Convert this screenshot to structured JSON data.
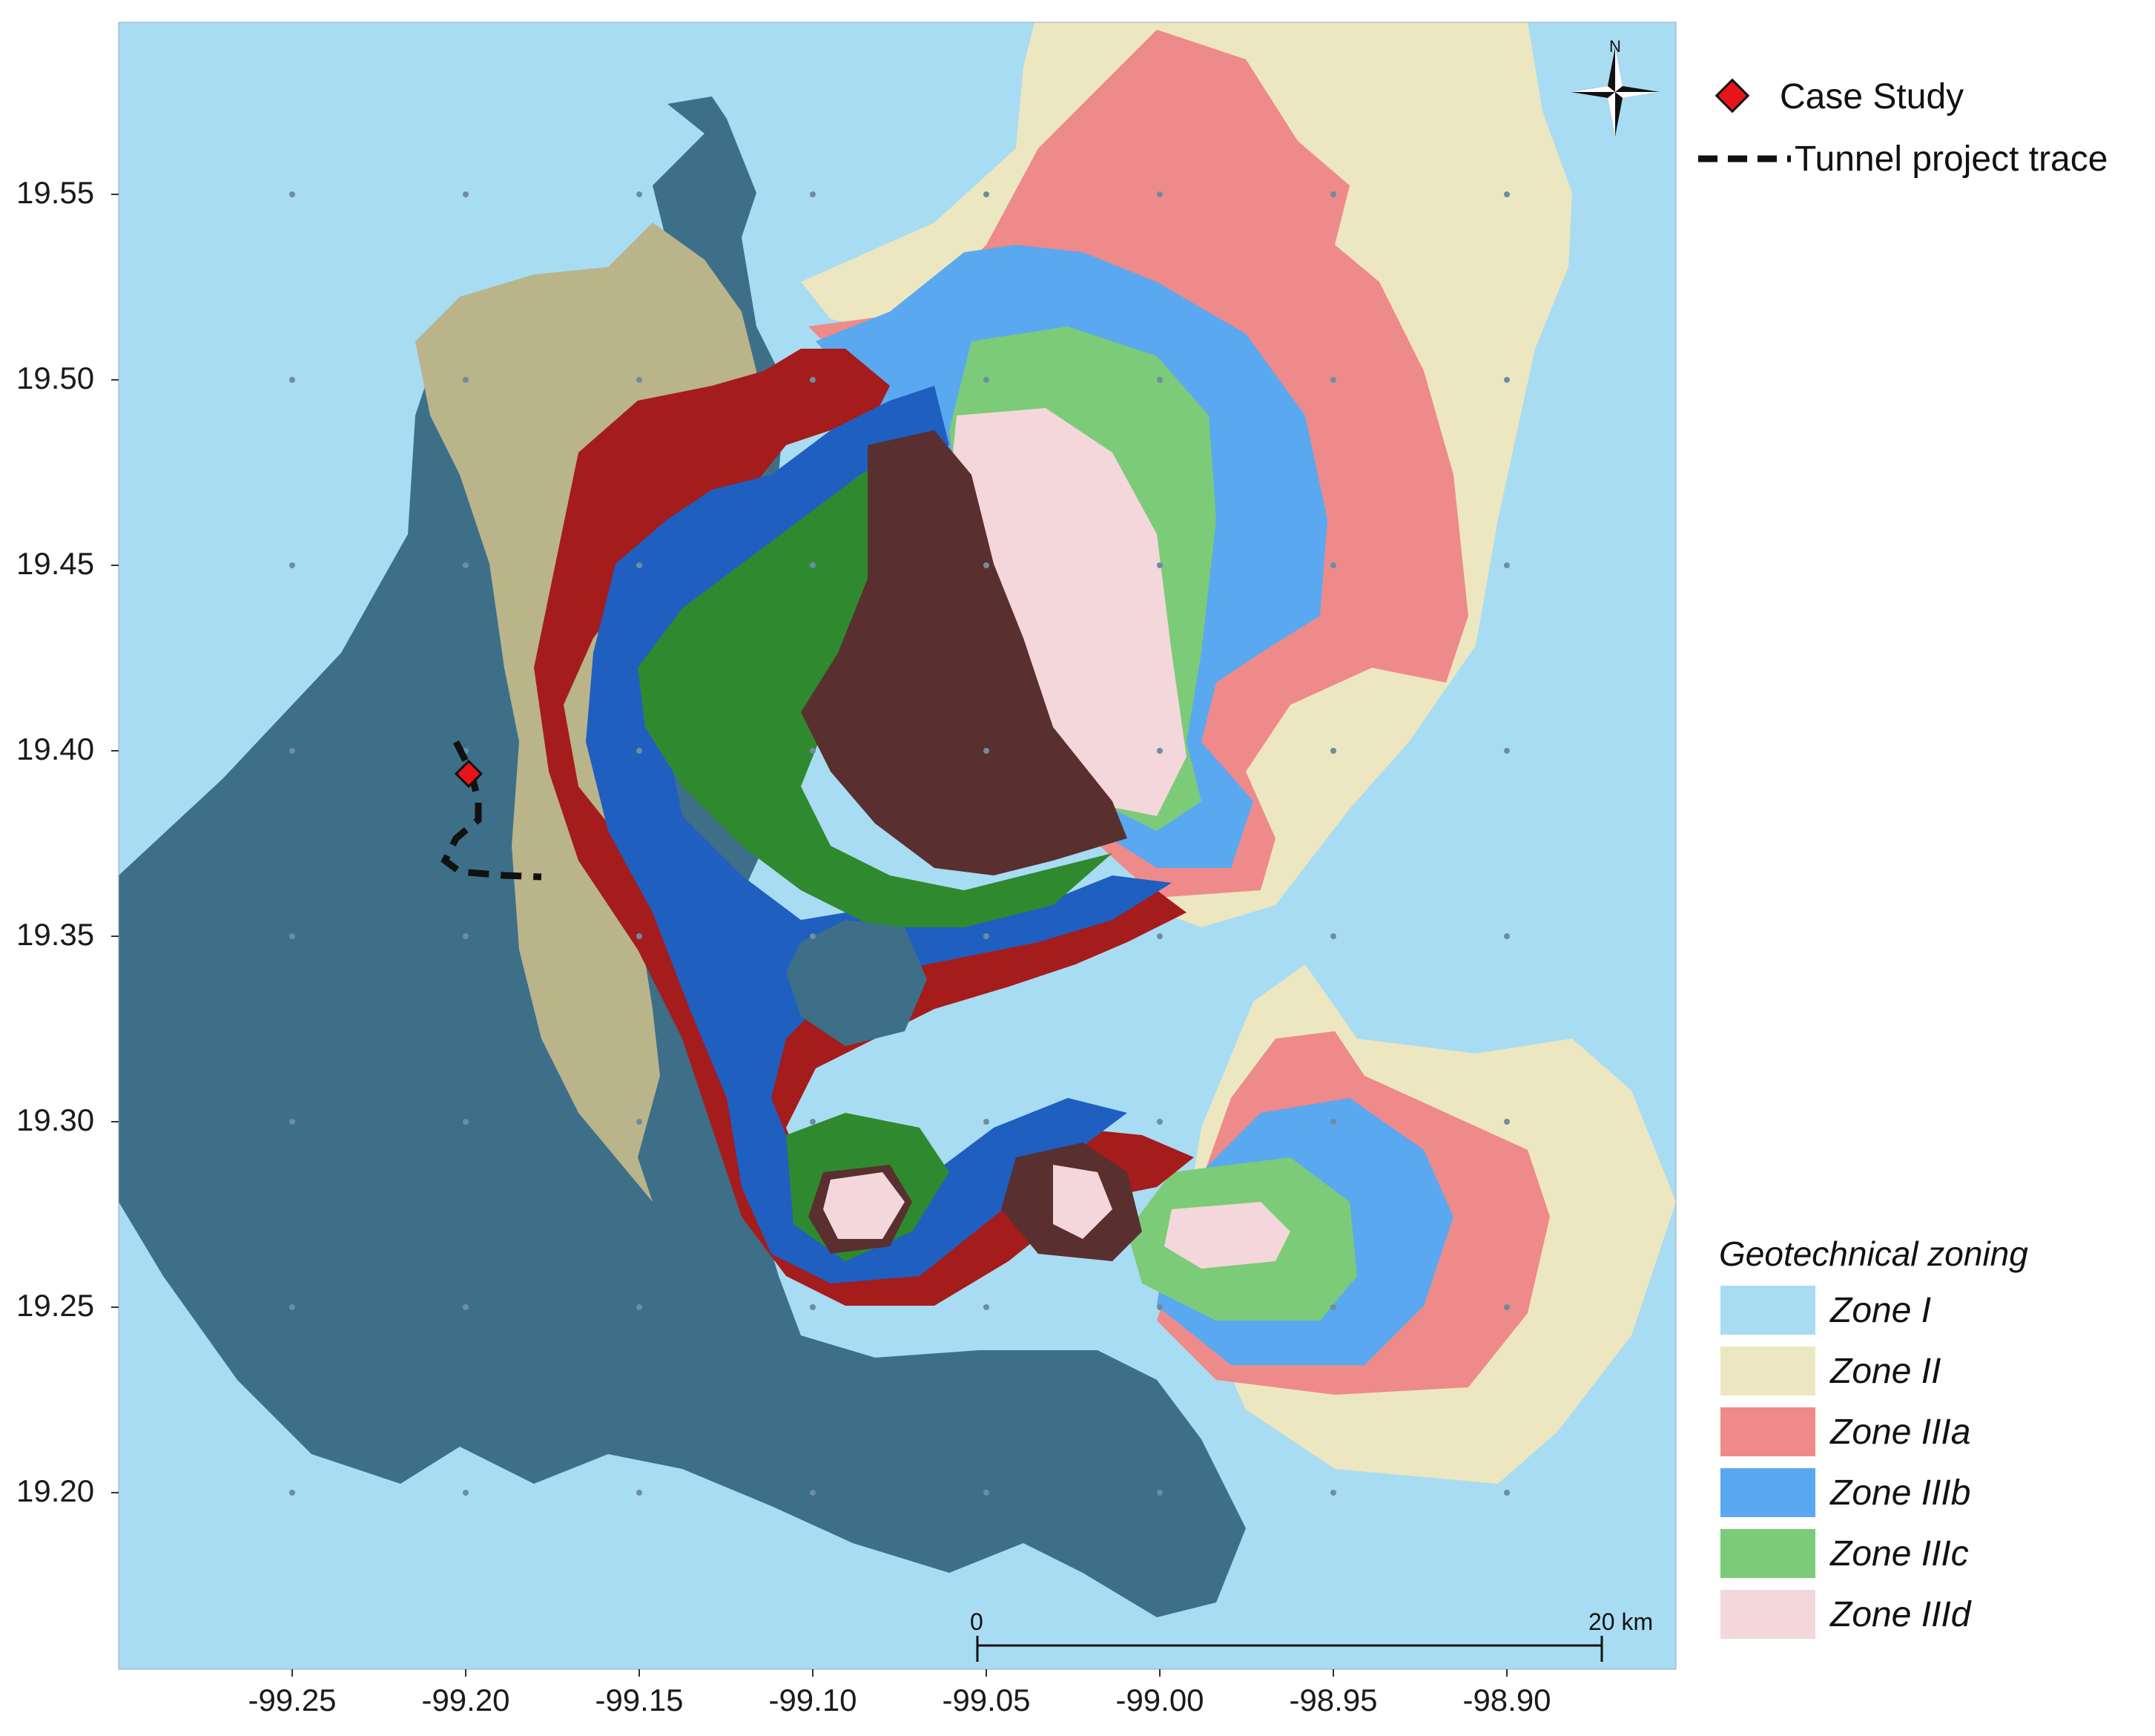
{
  "map": {
    "y_ticks": [
      "19.55",
      "19.50",
      "19.45",
      "19.40",
      "19.35",
      "19.30",
      "19.25",
      "19.20"
    ],
    "x_ticks": [
      "-99.25",
      "-99.20",
      "-99.15",
      "-99.10",
      "-99.05",
      "-99.00",
      "-98.95",
      "-98.90"
    ],
    "north_label": "N",
    "scale_bar": {
      "start_label": "0",
      "end_label": "20 km"
    }
  },
  "legend": {
    "case_study": {
      "label": "Case Study",
      "color": "#e8141a"
    },
    "tunnel": {
      "label": "Tunnel project trace",
      "color": "#111111"
    }
  },
  "zoning": {
    "title": "Geotechnical zoning",
    "zones": [
      {
        "label": "Zone I",
        "color": "#a8dcf2"
      },
      {
        "label": "Zone II",
        "color": "#ece7c0"
      },
      {
        "label": "Zone IIIa",
        "color": "#ee8a8a"
      },
      {
        "label": "Zone IIIb",
        "color": "#5aa8f0"
      },
      {
        "label": "Zone IIIc",
        "color": "#7ccb78"
      },
      {
        "label": "Zone IIId",
        "color": "#f3d7da"
      }
    ]
  },
  "colors": {
    "urban_overlay": "#3d6f88",
    "dark_red": "#a51c1c",
    "dark_blue": "#1f5fc0",
    "dark_green": "#2f8a2f",
    "dark_brown": "#5a2f2f",
    "khaki": "#b9b48a"
  }
}
